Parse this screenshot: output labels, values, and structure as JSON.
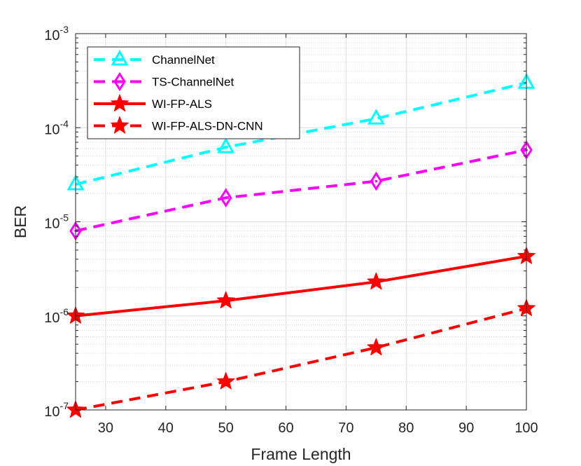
{
  "chart_data": {
    "type": "line",
    "title": "",
    "xlabel": "Frame Length",
    "ylabel": "BER",
    "yscale": "log",
    "xlim": [
      25,
      100
    ],
    "ylim": [
      1e-07,
      0.001
    ],
    "grid": true,
    "legend_position": "top-left",
    "x_ticks": [
      30,
      40,
      50,
      60,
      70,
      80,
      90,
      100
    ],
    "y_ticks": [
      {
        "base": "10",
        "exp": "-7",
        "value": 1e-07
      },
      {
        "base": "10",
        "exp": "-6",
        "value": 1e-06
      },
      {
        "base": "10",
        "exp": "-5",
        "value": 1e-05
      },
      {
        "base": "10",
        "exp": "-4",
        "value": 0.0001
      },
      {
        "base": "10",
        "exp": "-3",
        "value": 0.001
      }
    ],
    "x": [
      25,
      50,
      75,
      100
    ],
    "series": [
      {
        "name": "ChannelNet",
        "color": "#00ffff",
        "line_style": "dashed",
        "marker": "triangle",
        "values": [
          2.5e-05,
          6.2e-05,
          0.000125,
          0.0003
        ]
      },
      {
        "name": "TS-ChannelNet",
        "color": "#ff00ff",
        "line_style": "dashed",
        "marker": "diamond",
        "values": [
          8e-06,
          1.8e-05,
          2.7e-05,
          5.8e-05
        ]
      },
      {
        "name": "WI-FP-ALS",
        "color": "#ff0000",
        "line_style": "solid",
        "marker": "star",
        "values": [
          1e-06,
          1.45e-06,
          2.3e-06,
          4.3e-06
        ]
      },
      {
        "name": "WI-FP-ALS-DN-CNN",
        "color": "#ff0000",
        "line_style": "dashed",
        "marker": "star",
        "values": [
          1e-07,
          2e-07,
          4.6e-07,
          1.2e-06
        ]
      }
    ]
  }
}
